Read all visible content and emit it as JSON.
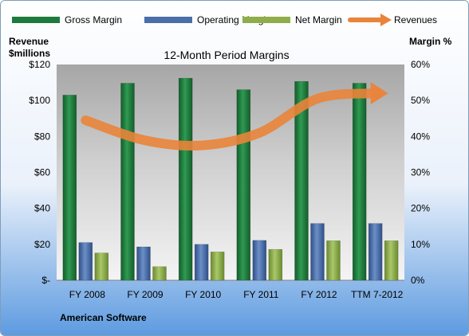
{
  "chart_data": {
    "type": "bar",
    "title": "12-Month Period Margins",
    "ylabel_left": "Revenue $millions",
    "ylabel_left_lines": [
      "Revenue",
      "$millions"
    ],
    "ylabel_right": "Margin %",
    "footer": "American Software",
    "categories": [
      "FY 2008",
      "FY 2009",
      "FY 2010",
      "FY 2011",
      "FY 2012",
      "TTM 7-2012"
    ],
    "y_left_ticks": [
      "$-",
      "$20",
      "$40",
      "$60",
      "$80",
      "$100",
      "$120"
    ],
    "y_right_ticks": [
      "0%",
      "10%",
      "20%",
      "30%",
      "40%",
      "50%",
      "60%"
    ],
    "ylim_left": [
      0,
      120
    ],
    "ylim_right": [
      0,
      60
    ],
    "legend_position": "top",
    "grid": false,
    "series": [
      {
        "name": "Gross Margin",
        "type": "bar",
        "axis": "right",
        "color": "#1e7a3c",
        "values": [
          51.5,
          54.8,
          56.2,
          53.0,
          55.3,
          54.8
        ]
      },
      {
        "name": "Operating Margin",
        "type": "bar",
        "axis": "right",
        "color": "#4a6ea8",
        "values": [
          10.5,
          9.3,
          10.0,
          11.1,
          15.8,
          15.8
        ]
      },
      {
        "name": "Net Margin",
        "type": "bar",
        "axis": "right",
        "color": "#8fae4a",
        "values": [
          7.6,
          3.8,
          7.9,
          8.6,
          11.0,
          11.0
        ]
      },
      {
        "name": "Revenues",
        "type": "line",
        "axis": "left",
        "color": "#e9843a",
        "values": [
          89,
          78,
          75,
          82,
          101,
          104
        ]
      }
    ]
  }
}
